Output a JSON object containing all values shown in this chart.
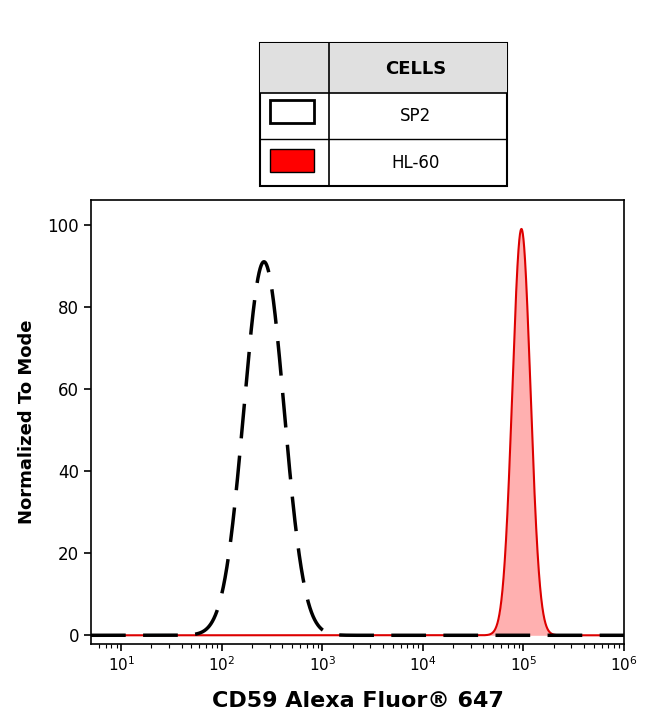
{
  "ylabel": "Normalized To Mode",
  "xlabel": "CD59 Alexa Fluor® 647",
  "xlim_log": [
    0.7,
    6.0
  ],
  "ylim": [
    -2,
    106
  ],
  "yticks": [
    0,
    20,
    40,
    60,
    80,
    100
  ],
  "legend_title": "CELLS",
  "legend_entries": [
    "SP2",
    "HL-60"
  ],
  "sp2_mean_log": 2.42,
  "sp2_std_log": 0.2,
  "sp2_peak": 91,
  "hl60_mean_log": 4.98,
  "hl60_std_log": 0.09,
  "hl60_peak": 99,
  "sp2_line_color": "black",
  "hl60_fill_color": "#FFB0B0",
  "hl60_edge_color": "#DD0000",
  "hl60_patch_color": "#FF0000",
  "background_color": "#ffffff",
  "fig_width": 6.5,
  "fig_height": 7.15,
  "dpi": 100
}
